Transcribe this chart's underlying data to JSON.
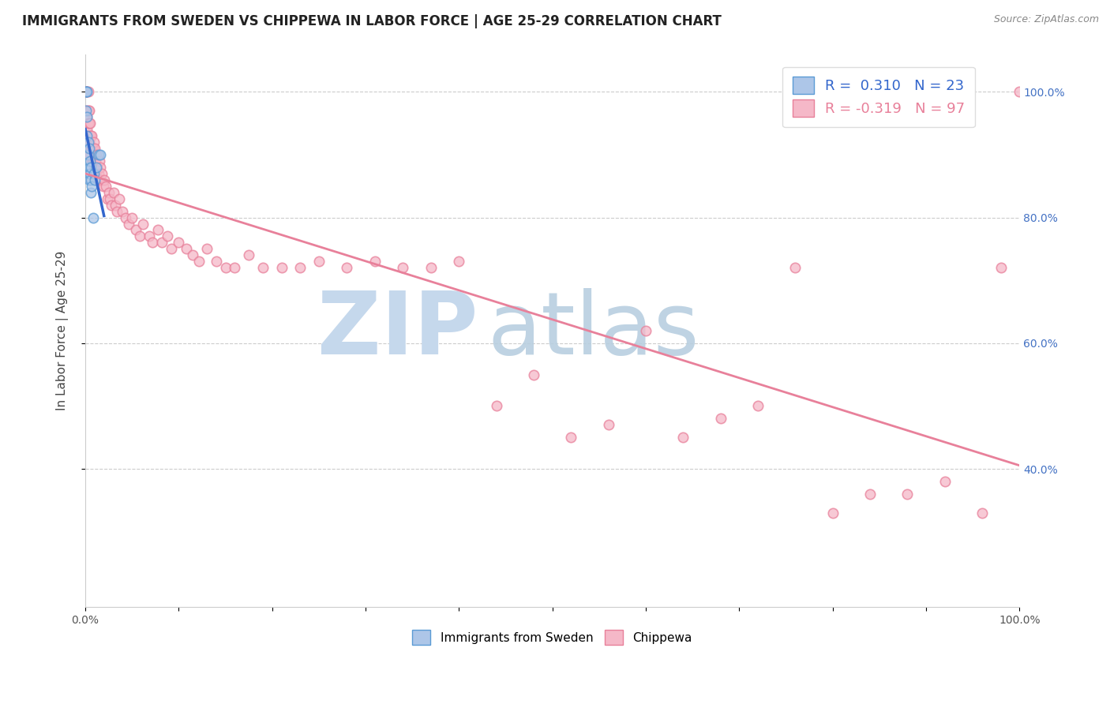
{
  "title": "IMMIGRANTS FROM SWEDEN VS CHIPPEWA IN LABOR FORCE | AGE 25-29 CORRELATION CHART",
  "source_text": "Source: ZipAtlas.com",
  "ylabel": "In Labor Force | Age 25-29",
  "r_sweden": 0.31,
  "n_sweden": 23,
  "r_chippewa": -0.319,
  "n_chippewa": 97,
  "legend_sweden": "Immigrants from Sweden",
  "legend_chippewa": "Chippewa",
  "sweden_color": "#adc6e8",
  "chippewa_color": "#f5b8c8",
  "sweden_edge_color": "#5b9bd5",
  "chippewa_edge_color": "#e8809a",
  "sweden_line_color": "#3366cc",
  "chippewa_line_color": "#e8809a",
  "watermark_zip_color": "#c5d8ec",
  "watermark_atlas_color": "#b8cfe0",
  "sweden_x": [
    0.001,
    0.001,
    0.001,
    0.002,
    0.002,
    0.002,
    0.003,
    0.003,
    0.004,
    0.004,
    0.004,
    0.005,
    0.005,
    0.006,
    0.006,
    0.006,
    0.007,
    0.008,
    0.009,
    0.01,
    0.012,
    0.014,
    0.016
  ],
  "sweden_y": [
    1.0,
    1.0,
    0.97,
    1.0,
    0.96,
    0.93,
    0.92,
    0.9,
    0.91,
    0.88,
    0.86,
    0.89,
    0.87,
    0.88,
    0.86,
    0.84,
    0.85,
    0.8,
    0.87,
    0.86,
    0.88,
    0.9,
    0.9
  ],
  "chippewa_x": [
    0.001,
    0.001,
    0.001,
    0.002,
    0.002,
    0.002,
    0.003,
    0.003,
    0.003,
    0.003,
    0.004,
    0.004,
    0.004,
    0.005,
    0.005,
    0.005,
    0.006,
    0.006,
    0.007,
    0.007,
    0.007,
    0.008,
    0.008,
    0.009,
    0.009,
    0.01,
    0.01,
    0.011,
    0.011,
    0.012,
    0.012,
    0.013,
    0.013,
    0.014,
    0.015,
    0.015,
    0.016,
    0.017,
    0.018,
    0.019,
    0.02,
    0.022,
    0.024,
    0.025,
    0.026,
    0.028,
    0.03,
    0.032,
    0.034,
    0.036,
    0.04,
    0.043,
    0.046,
    0.05,
    0.054,
    0.058,
    0.062,
    0.068,
    0.072,
    0.078,
    0.082,
    0.088,
    0.092,
    0.1,
    0.108,
    0.115,
    0.122,
    0.13,
    0.14,
    0.15,
    0.16,
    0.175,
    0.19,
    0.21,
    0.23,
    0.25,
    0.28,
    0.31,
    0.34,
    0.37,
    0.4,
    0.44,
    0.48,
    0.52,
    0.56,
    0.6,
    0.64,
    0.68,
    0.72,
    0.76,
    0.8,
    0.84,
    0.88,
    0.92,
    0.96,
    0.98,
    1.0
  ],
  "chippewa_y": [
    1.0,
    1.0,
    0.97,
    1.0,
    0.96,
    0.94,
    1.0,
    0.97,
    0.95,
    0.93,
    0.97,
    0.95,
    0.92,
    0.95,
    0.93,
    0.9,
    0.93,
    0.91,
    0.93,
    0.91,
    0.89,
    0.91,
    0.89,
    0.92,
    0.88,
    0.91,
    0.89,
    0.89,
    0.87,
    0.9,
    0.87,
    0.88,
    0.86,
    0.87,
    0.89,
    0.86,
    0.88,
    0.86,
    0.87,
    0.85,
    0.86,
    0.85,
    0.83,
    0.84,
    0.83,
    0.82,
    0.84,
    0.82,
    0.81,
    0.83,
    0.81,
    0.8,
    0.79,
    0.8,
    0.78,
    0.77,
    0.79,
    0.77,
    0.76,
    0.78,
    0.76,
    0.77,
    0.75,
    0.76,
    0.75,
    0.74,
    0.73,
    0.75,
    0.73,
    0.72,
    0.72,
    0.74,
    0.72,
    0.72,
    0.72,
    0.73,
    0.72,
    0.73,
    0.72,
    0.72,
    0.73,
    0.5,
    0.55,
    0.45,
    0.47,
    0.62,
    0.45,
    0.48,
    0.5,
    0.72,
    0.33,
    0.36,
    0.36,
    0.38,
    0.33,
    0.72,
    1.0
  ],
  "xlim": [
    0.0,
    1.0
  ],
  "ylim": [
    0.18,
    1.06
  ],
  "yticks": [
    0.4,
    0.6,
    0.8,
    1.0
  ],
  "ytick_labels": [
    "40.0%",
    "60.0%",
    "80.0%",
    "100.0%"
  ],
  "xticks": [
    0.0,
    0.1,
    0.2,
    0.3,
    0.4,
    0.5,
    0.6,
    0.7,
    0.8,
    0.9,
    1.0
  ],
  "xtick_labels_show": [
    "0.0%",
    "",
    "",
    "",
    "",
    "",
    "",
    "",
    "",
    "",
    "100.0%"
  ],
  "title_fontsize": 12,
  "tick_fontsize": 10,
  "marker_size": 80,
  "marker_alpha": 0.75
}
